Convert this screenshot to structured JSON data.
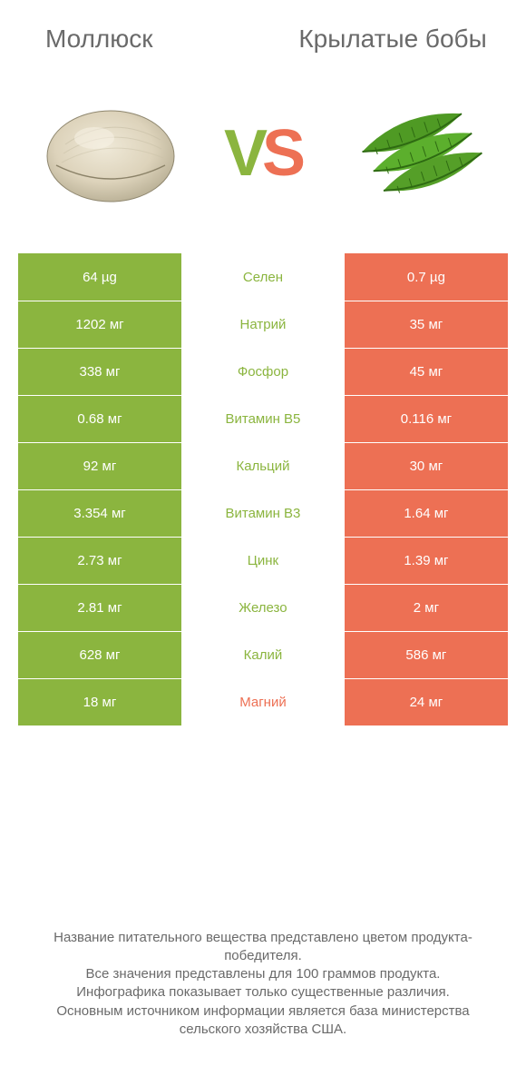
{
  "colors": {
    "green": "#8bb53f",
    "orange": "#ed7054",
    "text_gray": "#6a6a6a",
    "white": "#ffffff"
  },
  "header": {
    "left_title": "Моллюск",
    "right_title": "Крылатые бобы",
    "vs_v": "V",
    "vs_s": "S"
  },
  "rows": [
    {
      "left": "64 µg",
      "mid": "Селен",
      "right": "0.7 µg",
      "winner": "left"
    },
    {
      "left": "1202 мг",
      "mid": "Натрий",
      "right": "35 мг",
      "winner": "left"
    },
    {
      "left": "338 мг",
      "mid": "Фосфор",
      "right": "45 мг",
      "winner": "left"
    },
    {
      "left": "0.68 мг",
      "mid": "Витамин B5",
      "right": "0.116 мг",
      "winner": "left"
    },
    {
      "left": "92 мг",
      "mid": "Кальций",
      "right": "30 мг",
      "winner": "left"
    },
    {
      "left": "3.354 мг",
      "mid": "Витамин B3",
      "right": "1.64 мг",
      "winner": "left"
    },
    {
      "left": "2.73 мг",
      "mid": "Цинк",
      "right": "1.39 мг",
      "winner": "left"
    },
    {
      "left": "2.81 мг",
      "mid": "Железо",
      "right": "2 мг",
      "winner": "left"
    },
    {
      "left": "628 мг",
      "mid": "Калий",
      "right": "586 мг",
      "winner": "left"
    },
    {
      "left": "18 мг",
      "mid": "Магний",
      "right": "24 мг",
      "winner": "right"
    }
  ],
  "footer": {
    "line1": "Название питательного вещества представлено цветом продукта-победителя.",
    "line2": "Все значения представлены для 100 граммов продукта.",
    "line3": "Инфографика показывает только существенные различия.",
    "line4": "Основным источником информации является база министерства сельского хозяйства США."
  }
}
